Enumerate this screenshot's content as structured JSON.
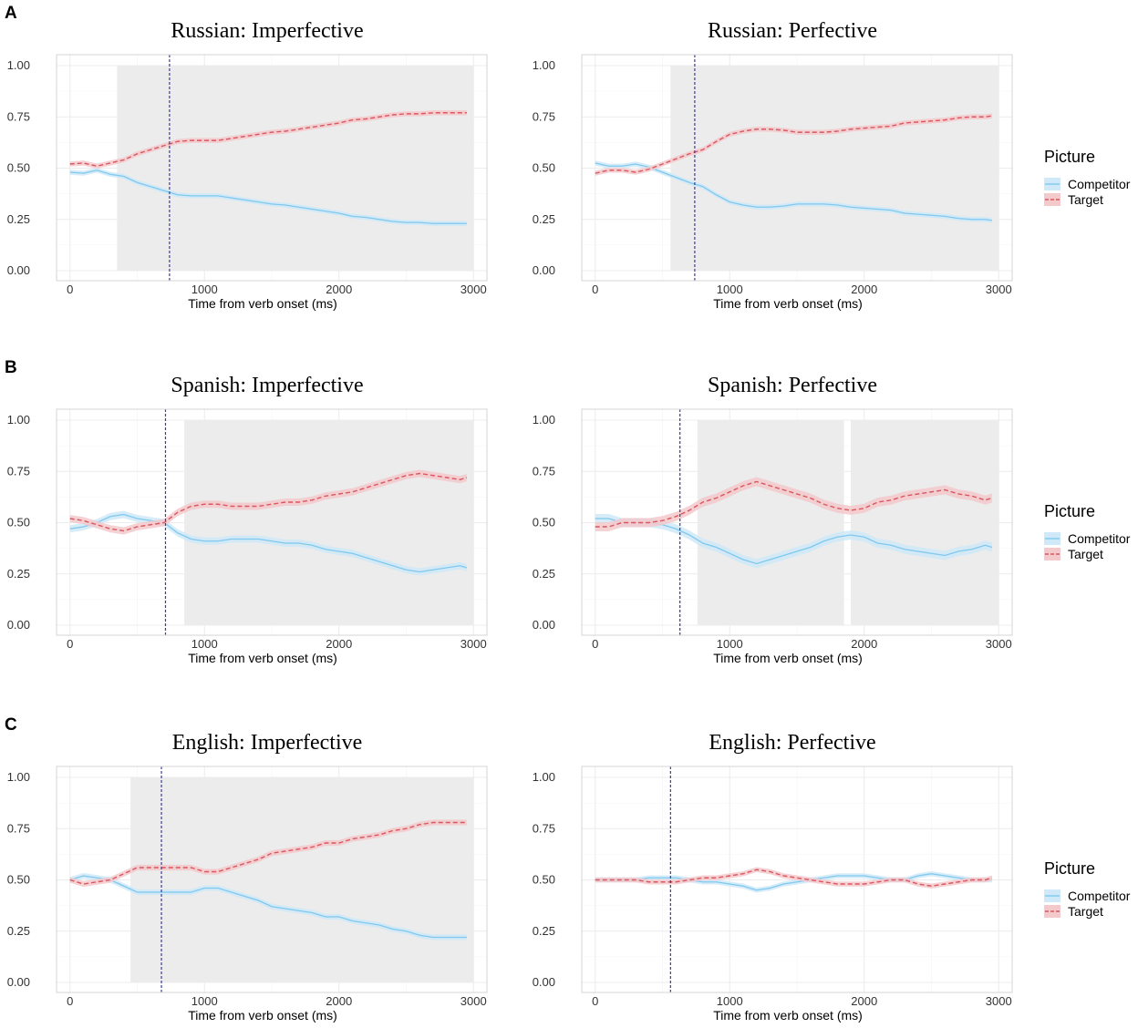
{
  "figure": {
    "colors": {
      "competitor": "#7fc8ee",
      "competitor_band": "#cfe9f8",
      "target": "#d9575f",
      "target_band": "#f3c9cc",
      "shade": "#ececec",
      "vline": "#3a3a9e",
      "grid": "#ececec",
      "border": "#d5d5d5"
    },
    "legend": {
      "title": "Picture",
      "items": [
        "Competitor",
        "Target"
      ]
    }
  },
  "chart_data": [
    {
      "row": "A",
      "title": "Russian: Imperfective",
      "type": "line",
      "xlabel": "Time from verb onset (ms)",
      "xlim": [
        0,
        3000
      ],
      "ylim": [
        0,
        1
      ],
      "xticks": [
        "0",
        "1000",
        "2000",
        "3000"
      ],
      "yticks": [
        "0.00",
        "0.25",
        "0.50",
        "0.75",
        "1.00"
      ],
      "grid": true,
      "vline": 740,
      "shaded": [
        [
          350,
          3000
        ]
      ],
      "x": [
        0,
        100,
        200,
        300,
        400,
        500,
        600,
        700,
        800,
        900,
        1000,
        1100,
        1200,
        1300,
        1400,
        1500,
        1600,
        1700,
        1800,
        1900,
        2000,
        2100,
        2200,
        2300,
        2400,
        2500,
        2600,
        2700,
        2800,
        2900,
        2950
      ],
      "series": [
        {
          "name": "Competitor",
          "band": 0.012,
          "values": [
            0.48,
            0.475,
            0.49,
            0.47,
            0.46,
            0.43,
            0.41,
            0.39,
            0.37,
            0.365,
            0.365,
            0.365,
            0.355,
            0.345,
            0.335,
            0.325,
            0.32,
            0.31,
            0.3,
            0.29,
            0.28,
            0.265,
            0.26,
            0.25,
            0.24,
            0.235,
            0.235,
            0.23,
            0.23,
            0.23,
            0.23
          ]
        },
        {
          "name": "Target",
          "band": 0.012,
          "values": [
            0.52,
            0.525,
            0.51,
            0.525,
            0.54,
            0.57,
            0.59,
            0.61,
            0.63,
            0.635,
            0.635,
            0.635,
            0.645,
            0.655,
            0.665,
            0.675,
            0.68,
            0.69,
            0.7,
            0.71,
            0.72,
            0.735,
            0.74,
            0.75,
            0.76,
            0.765,
            0.765,
            0.77,
            0.77,
            0.77,
            0.77
          ]
        }
      ]
    },
    {
      "row": "",
      "title": "Russian: Perfective",
      "type": "line",
      "xlabel": "Time from verb onset (ms)",
      "xlim": [
        0,
        3000
      ],
      "ylim": [
        0,
        1
      ],
      "xticks": [
        "0",
        "1000",
        "2000",
        "3000"
      ],
      "yticks": [
        "0.00",
        "0.25",
        "0.50",
        "0.75",
        "1.00"
      ],
      "grid": true,
      "vline": 740,
      "shaded": [
        [
          560,
          3000
        ]
      ],
      "x": [
        0,
        100,
        200,
        300,
        400,
        500,
        600,
        700,
        800,
        900,
        1000,
        1100,
        1200,
        1300,
        1400,
        1500,
        1600,
        1700,
        1800,
        1900,
        2000,
        2100,
        2200,
        2300,
        2400,
        2500,
        2600,
        2700,
        2800,
        2900,
        2950
      ],
      "series": [
        {
          "name": "Competitor",
          "band": 0.012,
          "values": [
            0.525,
            0.51,
            0.51,
            0.52,
            0.505,
            0.48,
            0.455,
            0.43,
            0.41,
            0.37,
            0.335,
            0.32,
            0.31,
            0.31,
            0.315,
            0.325,
            0.325,
            0.325,
            0.32,
            0.31,
            0.305,
            0.3,
            0.295,
            0.28,
            0.275,
            0.27,
            0.265,
            0.255,
            0.25,
            0.25,
            0.245
          ]
        },
        {
          "name": "Target",
          "band": 0.012,
          "values": [
            0.475,
            0.49,
            0.49,
            0.48,
            0.495,
            0.52,
            0.545,
            0.57,
            0.59,
            0.63,
            0.665,
            0.68,
            0.69,
            0.69,
            0.685,
            0.675,
            0.675,
            0.675,
            0.68,
            0.69,
            0.695,
            0.7,
            0.705,
            0.72,
            0.725,
            0.73,
            0.735,
            0.745,
            0.75,
            0.75,
            0.755
          ]
        }
      ]
    },
    {
      "row": "B",
      "title": "Spanish: Imperfective",
      "type": "line",
      "xlabel": "Time from verb onset (ms)",
      "xlim": [
        0,
        3000
      ],
      "ylim": [
        0,
        1
      ],
      "xticks": [
        "0",
        "1000",
        "2000",
        "3000"
      ],
      "yticks": [
        "0.00",
        "0.25",
        "0.50",
        "0.75",
        "1.00"
      ],
      "grid": true,
      "vline": 710,
      "shaded": [
        [
          850,
          3000
        ]
      ],
      "x": [
        0,
        100,
        200,
        300,
        400,
        500,
        600,
        700,
        800,
        900,
        1000,
        1100,
        1200,
        1300,
        1400,
        1500,
        1600,
        1700,
        1800,
        1900,
        2000,
        2100,
        2200,
        2300,
        2400,
        2500,
        2600,
        2700,
        2800,
        2900,
        2950
      ],
      "series": [
        {
          "name": "Competitor",
          "band": 0.018,
          "values": [
            0.47,
            0.48,
            0.5,
            0.53,
            0.54,
            0.52,
            0.51,
            0.5,
            0.45,
            0.42,
            0.41,
            0.41,
            0.42,
            0.42,
            0.42,
            0.41,
            0.4,
            0.4,
            0.39,
            0.37,
            0.36,
            0.35,
            0.33,
            0.31,
            0.29,
            0.27,
            0.26,
            0.27,
            0.28,
            0.29,
            0.28
          ]
        },
        {
          "name": "Target",
          "band": 0.018,
          "values": [
            0.52,
            0.51,
            0.49,
            0.47,
            0.46,
            0.48,
            0.49,
            0.5,
            0.55,
            0.58,
            0.59,
            0.59,
            0.58,
            0.58,
            0.58,
            0.59,
            0.6,
            0.6,
            0.61,
            0.63,
            0.64,
            0.65,
            0.67,
            0.69,
            0.71,
            0.73,
            0.74,
            0.73,
            0.72,
            0.71,
            0.72
          ]
        }
      ]
    },
    {
      "row": "",
      "title": "Spanish: Perfective",
      "type": "line",
      "xlabel": "Time from verb onset (ms)",
      "xlim": [
        0,
        3000
      ],
      "ylim": [
        0,
        1
      ],
      "xticks": [
        "0",
        "1000",
        "2000",
        "3000"
      ],
      "yticks": [
        "0.00",
        "0.25",
        "0.50",
        "0.75",
        "1.00"
      ],
      "grid": true,
      "vline": 630,
      "shaded": [
        [
          760,
          1850
        ],
        [
          1900,
          3000
        ]
      ],
      "x": [
        0,
        100,
        200,
        300,
        400,
        500,
        600,
        700,
        800,
        900,
        1000,
        1100,
        1200,
        1300,
        1400,
        1500,
        1600,
        1700,
        1800,
        1900,
        2000,
        2100,
        2200,
        2300,
        2400,
        2500,
        2600,
        2700,
        2800,
        2900,
        2950
      ],
      "series": [
        {
          "name": "Competitor",
          "band": 0.022,
          "values": [
            0.52,
            0.52,
            0.5,
            0.5,
            0.5,
            0.49,
            0.47,
            0.44,
            0.4,
            0.38,
            0.35,
            0.32,
            0.3,
            0.32,
            0.34,
            0.36,
            0.38,
            0.41,
            0.43,
            0.44,
            0.43,
            0.4,
            0.39,
            0.37,
            0.36,
            0.35,
            0.34,
            0.36,
            0.37,
            0.39,
            0.38
          ]
        },
        {
          "name": "Target",
          "band": 0.022,
          "values": [
            0.48,
            0.48,
            0.5,
            0.5,
            0.5,
            0.51,
            0.53,
            0.56,
            0.6,
            0.62,
            0.65,
            0.68,
            0.7,
            0.68,
            0.66,
            0.64,
            0.62,
            0.59,
            0.57,
            0.56,
            0.57,
            0.6,
            0.61,
            0.63,
            0.64,
            0.65,
            0.66,
            0.64,
            0.63,
            0.61,
            0.62
          ]
        }
      ]
    },
    {
      "row": "C",
      "title": "English: Imperfective",
      "type": "line",
      "xlabel": "Time from verb onset (ms)",
      "xlim": [
        0,
        3000
      ],
      "ylim": [
        0,
        1
      ],
      "xticks": [
        "0",
        "1000",
        "2000",
        "3000"
      ],
      "yticks": [
        "0.00",
        "0.25",
        "0.50",
        "0.75",
        "1.00"
      ],
      "grid": true,
      "vline": 680,
      "shaded": [
        [
          450,
          3000
        ]
      ],
      "x": [
        0,
        100,
        200,
        300,
        400,
        500,
        600,
        700,
        800,
        900,
        1000,
        1100,
        1200,
        1300,
        1400,
        1500,
        1600,
        1700,
        1800,
        1900,
        2000,
        2100,
        2200,
        2300,
        2400,
        2500,
        2600,
        2700,
        2800,
        2900,
        2950
      ],
      "series": [
        {
          "name": "Competitor",
          "band": 0.014,
          "values": [
            0.5,
            0.52,
            0.51,
            0.5,
            0.47,
            0.44,
            0.44,
            0.44,
            0.44,
            0.44,
            0.46,
            0.46,
            0.44,
            0.42,
            0.4,
            0.37,
            0.36,
            0.35,
            0.34,
            0.32,
            0.32,
            0.3,
            0.29,
            0.28,
            0.26,
            0.25,
            0.23,
            0.22,
            0.22,
            0.22,
            0.22
          ]
        },
        {
          "name": "Target",
          "band": 0.014,
          "values": [
            0.5,
            0.48,
            0.49,
            0.5,
            0.53,
            0.56,
            0.56,
            0.56,
            0.56,
            0.56,
            0.54,
            0.54,
            0.56,
            0.58,
            0.6,
            0.63,
            0.64,
            0.65,
            0.66,
            0.68,
            0.68,
            0.7,
            0.71,
            0.72,
            0.74,
            0.75,
            0.77,
            0.78,
            0.78,
            0.78,
            0.78
          ]
        }
      ]
    },
    {
      "row": "",
      "title": "English: Perfective",
      "type": "line",
      "xlabel": "Time from verb onset (ms)",
      "xlim": [
        0,
        3000
      ],
      "ylim": [
        0,
        1
      ],
      "xticks": [
        "0",
        "1000",
        "2000",
        "3000"
      ],
      "yticks": [
        "0.00",
        "0.25",
        "0.50",
        "0.75",
        "1.00"
      ],
      "grid": true,
      "vline": 560,
      "shaded": [],
      "x": [
        0,
        100,
        200,
        300,
        400,
        500,
        600,
        700,
        800,
        900,
        1000,
        1100,
        1200,
        1300,
        1400,
        1500,
        1600,
        1700,
        1800,
        1900,
        2000,
        2100,
        2200,
        2300,
        2400,
        2500,
        2600,
        2700,
        2800,
        2900,
        2950
      ],
      "series": [
        {
          "name": "Competitor",
          "band": 0.012,
          "values": [
            0.5,
            0.5,
            0.5,
            0.5,
            0.51,
            0.51,
            0.51,
            0.5,
            0.49,
            0.49,
            0.48,
            0.47,
            0.45,
            0.46,
            0.48,
            0.49,
            0.5,
            0.51,
            0.52,
            0.52,
            0.52,
            0.51,
            0.5,
            0.5,
            0.52,
            0.53,
            0.52,
            0.51,
            0.5,
            0.5,
            0.5
          ]
        },
        {
          "name": "Target",
          "band": 0.012,
          "values": [
            0.5,
            0.5,
            0.5,
            0.5,
            0.49,
            0.49,
            0.49,
            0.5,
            0.51,
            0.51,
            0.52,
            0.53,
            0.55,
            0.54,
            0.52,
            0.51,
            0.5,
            0.49,
            0.48,
            0.48,
            0.48,
            0.49,
            0.5,
            0.5,
            0.48,
            0.47,
            0.48,
            0.49,
            0.5,
            0.5,
            0.51
          ]
        }
      ]
    }
  ]
}
